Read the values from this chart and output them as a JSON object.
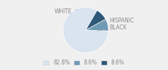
{
  "labels": [
    "WHITE",
    "HISPANIC",
    "BLACK"
  ],
  "values": [
    82.8,
    8.6,
    8.6
  ],
  "colors": [
    "#d9e4ef",
    "#6e9ab5",
    "#2e5878"
  ],
  "legend_labels": [
    "82.8%",
    "8.6%",
    "8.6%"
  ],
  "bg_color": "#f0f0f0",
  "text_color": "#888888",
  "font_size": 5.5,
  "startangle": 60
}
